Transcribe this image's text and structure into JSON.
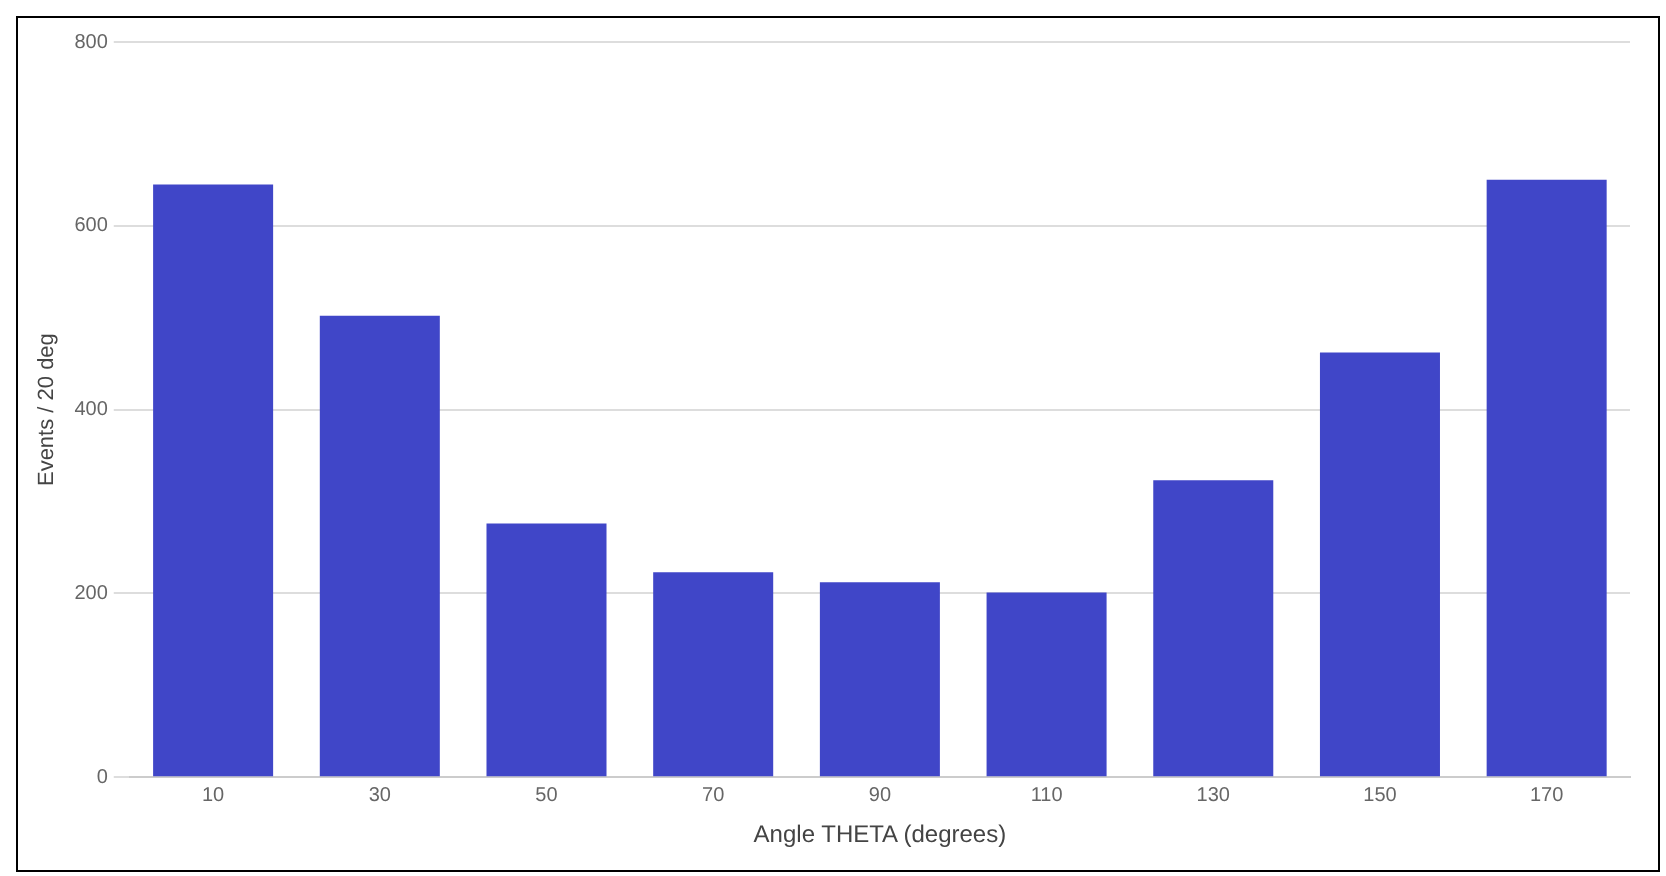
{
  "chart_data": {
    "type": "bar",
    "xlabel": "Angle THETA (degrees)",
    "ylabel": "Events / 20 deg",
    "categories": [
      "10",
      "30",
      "50",
      "70",
      "90",
      "110",
      "130",
      "150",
      "170"
    ],
    "values": [
      645,
      502,
      276,
      223,
      212,
      201,
      323,
      462,
      650
    ],
    "color": "#4046c8",
    "ylim": [
      0,
      800
    ],
    "yticks": [
      0,
      200,
      400,
      600,
      800
    ],
    "grid": "y",
    "legend": false
  }
}
